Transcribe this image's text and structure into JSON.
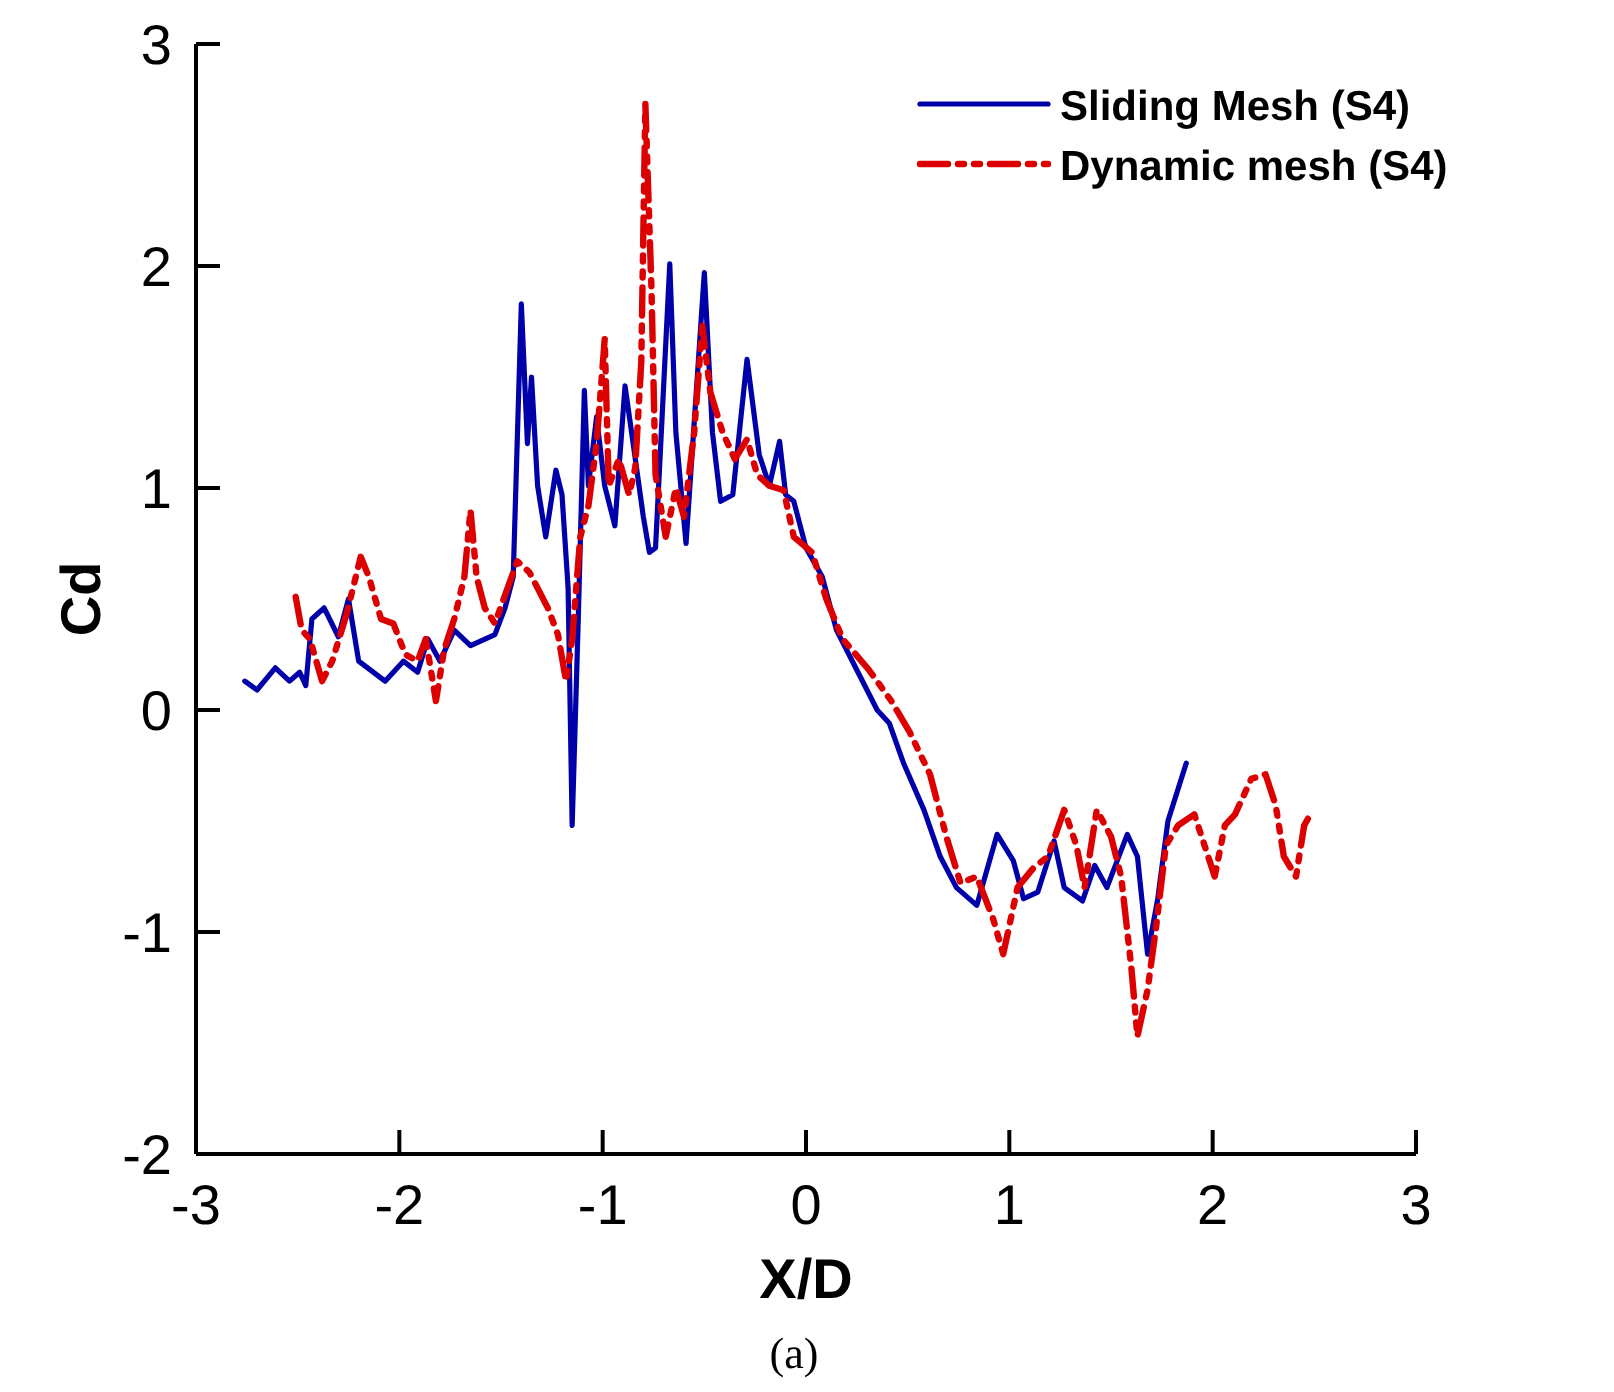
{
  "chart_data": {
    "type": "line",
    "xlabel": "X/D",
    "ylabel": "Cd",
    "annotations": [
      "(a)"
    ],
    "xlim": [
      -3,
      3
    ],
    "ylim": [
      -2,
      3
    ],
    "xticks": [
      -3,
      -2,
      -1,
      0,
      1,
      2,
      3
    ],
    "yticks": [
      -2,
      -1,
      0,
      1,
      2,
      3
    ],
    "grid": false,
    "legend": "top right",
    "marker": "none",
    "series": [
      {
        "name": "Sliding Mesh (S4)",
        "color": "#0000aa",
        "line_style": "solid",
        "x": [
          -2.76,
          -2.7,
          -2.61,
          -2.54,
          -2.49,
          -2.46,
          -2.43,
          -2.37,
          -2.3,
          -2.25,
          -2.2,
          -2.07,
          -1.98,
          -1.91,
          -1.86,
          -1.8,
          -1.73,
          -1.65,
          -1.53,
          -1.48,
          -1.44,
          -1.4,
          -1.37,
          -1.35,
          -1.32,
          -1.28,
          -1.23,
          -1.2,
          -1.17,
          -1.15,
          -1.12,
          -1.09,
          -1.07,
          -1.03,
          -0.99,
          -0.94,
          -0.89,
          -0.85,
          -0.8,
          -0.77,
          -0.74,
          -0.67,
          -0.64,
          -0.59,
          -0.5,
          -0.46,
          -0.42,
          -0.36,
          -0.29,
          -0.23,
          -0.18,
          -0.13,
          -0.1,
          -0.06,
          0,
          0.08,
          0.15,
          0.25,
          0.35,
          0.41,
          0.48,
          0.58,
          0.66,
          0.74,
          0.84,
          0.94,
          1.02,
          1.07,
          1.14,
          1.22,
          1.27,
          1.36,
          1.42,
          1.48,
          1.58,
          1.63,
          1.68,
          1.73,
          1.78,
          1.87
        ],
        "values": [
          0.13,
          0.09,
          0.19,
          0.13,
          0.17,
          0.11,
          0.41,
          0.46,
          0.33,
          0.5,
          0.22,
          0.13,
          0.22,
          0.17,
          0.32,
          0.22,
          0.36,
          0.29,
          0.34,
          0.46,
          0.6,
          1.83,
          1.2,
          1.5,
          1.01,
          0.78,
          1.08,
          0.97,
          0.55,
          -0.52,
          0.41,
          1.44,
          1.01,
          1.32,
          1.01,
          0.83,
          1.46,
          1.2,
          0.87,
          0.71,
          0.73,
          2.01,
          1.25,
          0.75,
          1.97,
          1.25,
          0.94,
          0.97,
          1.58,
          1.15,
          1.01,
          1.21,
          0.97,
          0.94,
          0.73,
          0.6,
          0.36,
          0.18,
          0,
          -0.06,
          -0.24,
          -0.45,
          -0.66,
          -0.8,
          -0.88,
          -0.56,
          -0.68,
          -0.85,
          -0.82,
          -0.59,
          -0.8,
          -0.86,
          -0.7,
          -0.8,
          -0.56,
          -0.66,
          -1.1,
          -0.85,
          -0.5,
          -0.24
        ]
      },
      {
        "name": "Dynamic mesh (S4)",
        "color": "#dd0000",
        "line_style": "dashed",
        "x": [
          -2.51,
          -2.48,
          -2.44,
          -2.38,
          -2.33,
          -2.26,
          -2.19,
          -2.15,
          -2.09,
          -2.03,
          -1.97,
          -1.91,
          -1.87,
          -1.82,
          -1.78,
          -1.73,
          -1.68,
          -1.65,
          -1.62,
          -1.58,
          -1.53,
          -1.42,
          -1.36,
          -1.27,
          -1.22,
          -1.18,
          -1.15,
          -1.11,
          -1.07,
          -1.03,
          -0.99,
          -0.97,
          -0.92,
          -0.87,
          -0.84,
          -0.81,
          -0.79,
          -0.76,
          -0.74,
          -0.69,
          -0.64,
          -0.6,
          -0.55,
          -0.51,
          -0.47,
          -0.41,
          -0.35,
          -0.29,
          -0.24,
          -0.18,
          -0.11,
          -0.06,
          0.03,
          0.1,
          0.18,
          0.31,
          0.42,
          0.51,
          0.61,
          0.69,
          0.76,
          0.84,
          0.92,
          0.97,
          1.04,
          1.12,
          1.19,
          1.27,
          1.33,
          1.37,
          1.43,
          1.5,
          1.55,
          1.6,
          1.63,
          1.68,
          1.72,
          1.77,
          1.83,
          1.91,
          1.96,
          2.01,
          2.06,
          2.11,
          2.19,
          2.26,
          2.31,
          2.35,
          2.41,
          2.45,
          2.48
        ],
        "values": [
          0.51,
          0.36,
          0.32,
          0.13,
          0.22,
          0.43,
          0.69,
          0.6,
          0.41,
          0.39,
          0.25,
          0.22,
          0.32,
          0.04,
          0.27,
          0.41,
          0.6,
          0.9,
          0.6,
          0.46,
          0.39,
          0.67,
          0.62,
          0.46,
          0.34,
          0.13,
          0.32,
          0.78,
          0.92,
          1.2,
          1.67,
          1.01,
          1.13,
          0.97,
          1.09,
          1.57,
          2.73,
          1.9,
          1.06,
          0.78,
          1,
          0.87,
          1.25,
          1.73,
          1.43,
          1.25,
          1.13,
          1.22,
          1.06,
          1.01,
          0.99,
          0.78,
          0.71,
          0.5,
          0.32,
          0.18,
          0.04,
          -0.1,
          -0.29,
          -0.57,
          -0.78,
          -0.75,
          -0.94,
          -1.1,
          -0.8,
          -0.71,
          -0.66,
          -0.45,
          -0.61,
          -0.8,
          -0.45,
          -0.57,
          -0.75,
          -1.16,
          -1.47,
          -1.26,
          -0.99,
          -0.61,
          -0.52,
          -0.47,
          -0.61,
          -0.75,
          -0.52,
          -0.47,
          -0.31,
          -0.29,
          -0.43,
          -0.66,
          -0.75,
          -0.52,
          -0.47
        ]
      }
    ]
  }
}
